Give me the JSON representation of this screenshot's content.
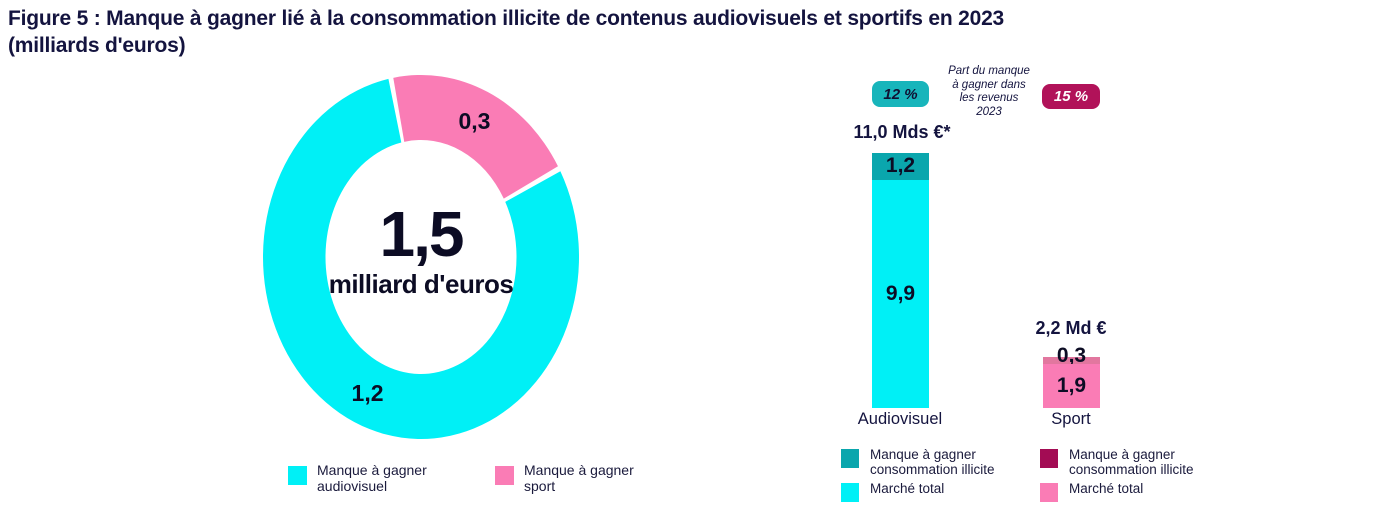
{
  "title": {
    "line1": "Figure 5 : Manque à gagner lié à la consommation illicite de contenus audiovisuels et sportifs en 2023",
    "line2": "(milliards d'euros)"
  },
  "colors": {
    "navy_text": "#14143f",
    "cyan": "#00f0f6",
    "pink": "#fa7cb5",
    "teal": "#0aa6ad",
    "teal_badge": "#18b5bb",
    "magenta_badge": "#b11259",
    "magenta_legend": "#a30c54",
    "sport_illicite_segment": "#e2779f"
  },
  "chart_data": [
    {
      "type": "pie",
      "subtype": "donut",
      "labels": [
        "Manque à gagner audiovisuel",
        "Manque à gagner sport"
      ],
      "values": [
        1.2,
        0.3
      ],
      "value_labels": [
        "1,2",
        "0,3"
      ],
      "colors": [
        "#00f0f6",
        "#fa7cb5"
      ],
      "total": 1.5,
      "center_text": "1,5",
      "center_subtext": "milliard d'euros",
      "start_angle_deg": 61,
      "legend_position": "bottom"
    },
    {
      "type": "bar",
      "subtype": "stacked",
      "categories": [
        "Audiovisuel",
        "Sport"
      ],
      "series": [
        {
          "name": "Manque à gagner consommation illicite",
          "values": [
            1.2,
            0.3
          ],
          "value_labels": [
            "1,2",
            "0,3"
          ],
          "colors": [
            "#0aa6ad",
            "#e2779f"
          ]
        },
        {
          "name": "Marché total",
          "values": [
            9.9,
            1.9
          ],
          "value_labels": [
            "9,9",
            "1,9"
          ],
          "colors": [
            "#00f0f6",
            "#fa7cb5"
          ]
        }
      ],
      "totals": [
        11.0,
        2.2
      ],
      "total_labels": [
        "11,0 Mds €*",
        "2,2 Md €"
      ],
      "badges": [
        "12 %",
        "15 %"
      ],
      "note_lines": [
        "Part du manque",
        "à gagner dans",
        "les revenus",
        "2023"
      ],
      "ylabel": "",
      "xlabel": "",
      "grid": false
    }
  ],
  "legend_left": {
    "items": [
      {
        "line1": "Manque à gagner",
        "line2": "audiovisuel",
        "color": "#00f0f6"
      },
      {
        "line1": "Manque à gagner",
        "line2": "sport",
        "color": "#fa7cb5"
      }
    ]
  },
  "legend_right": {
    "columns": [
      {
        "items": [
          {
            "line1": "Manque à gagner",
            "line2": "consommation illicite",
            "color": "#0aa6ad"
          },
          {
            "line1": "Marché total",
            "line2": "",
            "color": "#00f0f6"
          }
        ]
      },
      {
        "items": [
          {
            "line1": "Manque à gagner",
            "line2": "consommation illicite",
            "color": "#a30c54"
          },
          {
            "line1": "Marché total",
            "line2": "",
            "color": "#fa7cb5"
          }
        ]
      }
    ]
  }
}
